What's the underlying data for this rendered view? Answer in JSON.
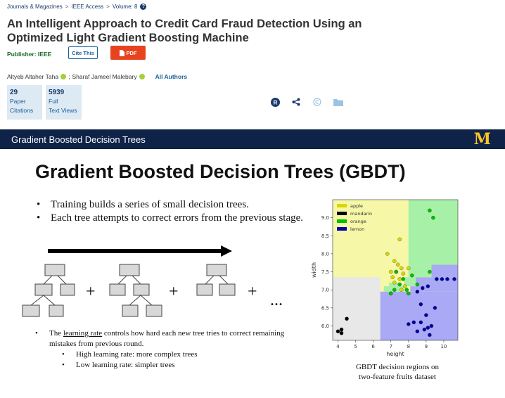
{
  "breadcrumb": {
    "items": [
      "Journals & Magazines",
      "IEEE Access",
      "Volume: 8"
    ],
    "separator": ">"
  },
  "article": {
    "title": "An Intelligent Approach to Credit Card Fraud Detection Using an Optimized Light Gradient Boosting Machine",
    "publisher_label": "Publisher: IEEE",
    "cite_label": "Cite This",
    "pdf_label": "PDF",
    "authors": [
      "Altyeb Altaher Taha",
      "Sharaf Jameel Malebary"
    ],
    "author_separator": ";",
    "all_authors_label": "All Authors"
  },
  "metrics": [
    {
      "value": "29",
      "line1": "Paper",
      "line2": "Citations"
    },
    {
      "value": "5939",
      "line1": "Full",
      "line2": "Text Views"
    }
  ],
  "toolbar": {
    "icons": [
      "r-badge-icon",
      "share-icon",
      "copyright-icon",
      "folder-icon"
    ]
  },
  "slide": {
    "header": "Gradient Boosted Decision Trees",
    "logo": "M",
    "title": "Gradient Boosted Decision Trees (GBDT)",
    "bullets": [
      "Training builds a series of small decision trees.",
      "Each tree attempts to correct errors from the previous stage."
    ],
    "tree_ops": [
      "+",
      "+",
      "+",
      "..."
    ],
    "learning_rate": {
      "prefix": "The ",
      "term": "learning rate",
      "suffix": " controls how hard each new tree tries to correct remaining mistakes from previous round."
    },
    "sub_bullets": [
      "High learning rate: more complex trees",
      "Low learning rate: simpler trees"
    ],
    "caption_line1": "GBDT decision regions on",
    "caption_line2": "two-feature fruits dataset"
  },
  "colors": {
    "apple": "#f7f7a8",
    "mandarin": "#e8e8e8",
    "orange": "#a7f0a7",
    "lemon": "#a9a9f5",
    "header_bg": "#0e2347",
    "maize": "#f8c62a"
  },
  "chart_data": {
    "type": "scatter",
    "xlabel": "height",
    "ylabel": "width",
    "xlim": [
      3.7,
      10.8
    ],
    "ylim": [
      5.6,
      9.5
    ],
    "xticks": [
      4,
      5,
      6,
      7,
      8,
      9,
      10
    ],
    "yticks": [
      6.0,
      6.5,
      7.0,
      7.5,
      8.0,
      8.5,
      9.0
    ],
    "legend": [
      "apple",
      "mandarin",
      "orange",
      "lemon"
    ],
    "legend_position": "top-left",
    "series": [
      {
        "name": "apple",
        "color": "#d7d700",
        "points": [
          [
            7.5,
            8.4
          ],
          [
            6.8,
            8.0
          ],
          [
            7.2,
            7.8
          ],
          [
            7.4,
            7.7
          ],
          [
            7.6,
            7.6
          ],
          [
            7.0,
            7.5
          ],
          [
            7.3,
            7.5
          ],
          [
            7.7,
            7.45
          ],
          [
            7.1,
            7.35
          ],
          [
            7.5,
            7.3
          ],
          [
            7.2,
            7.2
          ],
          [
            7.8,
            7.1
          ],
          [
            7.6,
            7.0
          ],
          [
            7.0,
            6.9
          ],
          [
            8.0,
            7.6
          ]
        ]
      },
      {
        "name": "mandarin",
        "color": "#000000",
        "points": [
          [
            4.0,
            5.85
          ],
          [
            4.2,
            5.9
          ],
          [
            4.2,
            5.8
          ],
          [
            4.5,
            6.2
          ]
        ]
      },
      {
        "name": "orange",
        "color": "#00c000",
        "points": [
          [
            9.2,
            9.2
          ],
          [
            9.4,
            9.0
          ],
          [
            7.3,
            7.5
          ],
          [
            7.7,
            7.3
          ],
          [
            7.5,
            7.15
          ],
          [
            7.9,
            7.0
          ],
          [
            8.2,
            7.4
          ],
          [
            8.0,
            6.9
          ],
          [
            9.2,
            7.5
          ],
          [
            8.5,
            7.15
          ],
          [
            7.2,
            7.0
          ],
          [
            7.0,
            6.9
          ]
        ]
      },
      {
        "name": "lemon",
        "color": "#0000a8",
        "points": [
          [
            9.6,
            7.3
          ],
          [
            9.9,
            7.3
          ],
          [
            10.2,
            7.3
          ],
          [
            10.6,
            7.3
          ],
          [
            9.1,
            7.1
          ],
          [
            8.8,
            7.05
          ],
          [
            8.5,
            6.95
          ],
          [
            9.5,
            6.5
          ],
          [
            8.7,
            6.6
          ],
          [
            9.0,
            6.3
          ],
          [
            8.7,
            6.1
          ],
          [
            8.3,
            6.1
          ],
          [
            8.0,
            6.05
          ],
          [
            9.1,
            5.95
          ],
          [
            9.3,
            6.0
          ],
          [
            8.9,
            5.9
          ],
          [
            8.5,
            5.85
          ],
          [
            9.2,
            5.75
          ]
        ]
      }
    ]
  }
}
